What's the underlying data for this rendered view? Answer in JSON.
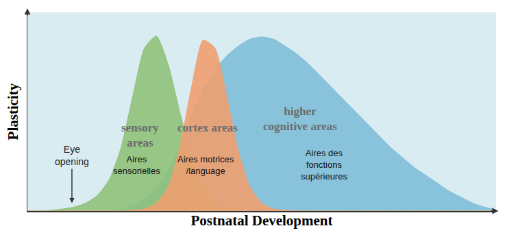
{
  "chart_data": {
    "type": "area",
    "x_label": "Postnatal Development",
    "y_label": "Plasticity",
    "xlim": [
      0,
      100
    ],
    "ylim": [
      0,
      100
    ],
    "tick_labels": false,
    "grid": false,
    "x": [
      0,
      2.5,
      5,
      7.5,
      10,
      12.5,
      15,
      17.5,
      20,
      22.5,
      25,
      27.5,
      30,
      32.5,
      35,
      37.5,
      40,
      42.5,
      45,
      47.5,
      50,
      52.5,
      55,
      57.5,
      60,
      62.5,
      65,
      67.5,
      70,
      72.5,
      75,
      77.5,
      80,
      82.5,
      85,
      87.5,
      90,
      92.5,
      95,
      97.5,
      100
    ],
    "series": [
      {
        "name": "higher cognitive areas",
        "color": "#7fbfd8",
        "values": [
          0,
          0,
          0,
          0,
          0,
          0,
          0,
          0,
          1,
          3,
          6,
          12,
          20,
          33,
          48,
          61,
          71,
          78,
          83,
          86.5,
          87.6,
          86.5,
          83,
          79,
          74,
          68,
          62,
          56,
          50,
          44,
          38,
          32,
          27,
          22,
          18,
          14,
          10,
          7,
          4,
          2,
          0.5
        ]
      },
      {
        "name": "sensory areas",
        "color": "#8fc27a",
        "values": [
          0,
          0,
          0.3,
          1,
          2,
          4,
          8,
          16,
          32,
          58,
          82,
          88,
          74,
          50,
          28,
          13,
          5,
          2,
          0.5,
          0,
          0,
          0,
          0,
          0,
          0,
          0,
          0,
          0,
          0,
          0,
          0,
          0,
          0,
          0,
          0,
          0,
          0,
          0,
          0,
          0,
          0
        ]
      },
      {
        "name": "cortex areas",
        "color": "#f0a070",
        "values": [
          0,
          0,
          0,
          0,
          0,
          0,
          0,
          0,
          0,
          0.3,
          1,
          4,
          12,
          32,
          62,
          86,
          82,
          58,
          30,
          12,
          4,
          1,
          0.3,
          0,
          0,
          0,
          0,
          0,
          0,
          0,
          0,
          0,
          0,
          0,
          0,
          0,
          0,
          0,
          0,
          0,
          0
        ]
      }
    ],
    "annotations": [
      {
        "lines": [
          "Eye",
          "opening"
        ],
        "x": 9.5,
        "y": 4,
        "marker": "arrow"
      },
      {
        "lines": [
          "sensory",
          "areas"
        ],
        "x": 24.0,
        "y": 38
      },
      {
        "lines": [
          "Aires",
          "sensorielles"
        ],
        "x": 23.3,
        "y": 23
      },
      {
        "lines": [
          "cortex areas"
        ],
        "x": 38.4,
        "y": 42
      },
      {
        "lines": [
          "Aires motrices",
          "/language"
        ],
        "x": 38.1,
        "y": 23
      },
      {
        "lines": [
          "higher",
          "cognitive areas"
        ],
        "x": 58.2,
        "y": 46.5
      },
      {
        "lines": [
          "Aires des",
          "fonctions",
          "supérieures"
        ],
        "x": 63.3,
        "y": 23.4
      }
    ]
  }
}
